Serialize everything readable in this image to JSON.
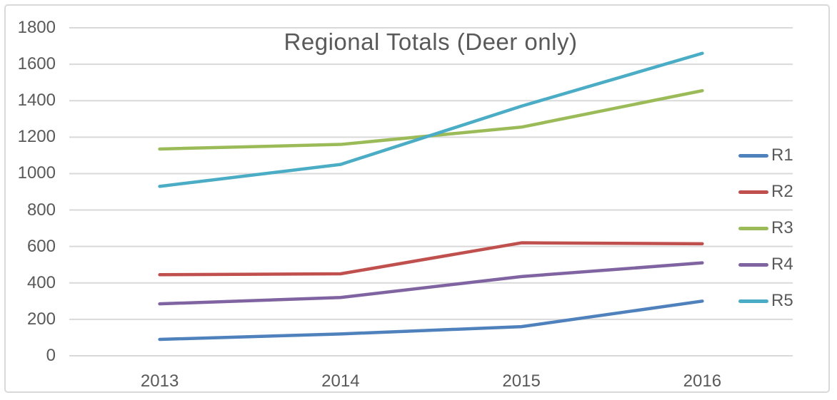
{
  "chart_data": {
    "type": "line",
    "title": "Regional Totals (Deer only)",
    "categories": [
      "2013",
      "2014",
      "2015",
      "2016"
    ],
    "series": [
      {
        "name": "R1",
        "color": "#4F81BD",
        "values": [
          90,
          120,
          160,
          300
        ]
      },
      {
        "name": "R2",
        "color": "#C0504D",
        "values": [
          445,
          450,
          620,
          615
        ]
      },
      {
        "name": "R3",
        "color": "#9BBB59",
        "values": [
          1135,
          1160,
          1255,
          1455
        ]
      },
      {
        "name": "R4",
        "color": "#8064A2",
        "values": [
          285,
          320,
          435,
          510
        ]
      },
      {
        "name": "R5",
        "color": "#4BACC6",
        "values": [
          930,
          1050,
          1370,
          1660
        ]
      }
    ],
    "xlabel": "",
    "ylabel": "",
    "ylim": [
      0,
      1800
    ],
    "yticks": [
      0,
      200,
      400,
      600,
      800,
      1000,
      1200,
      1400,
      1600,
      1800
    ],
    "grid": "horizontal",
    "legend_position": "right-middle"
  },
  "colors": {
    "text": "#595959",
    "gridline": "#D9D9D9",
    "frame_border": "#D9D9D9",
    "background": "#FFFFFF"
  }
}
